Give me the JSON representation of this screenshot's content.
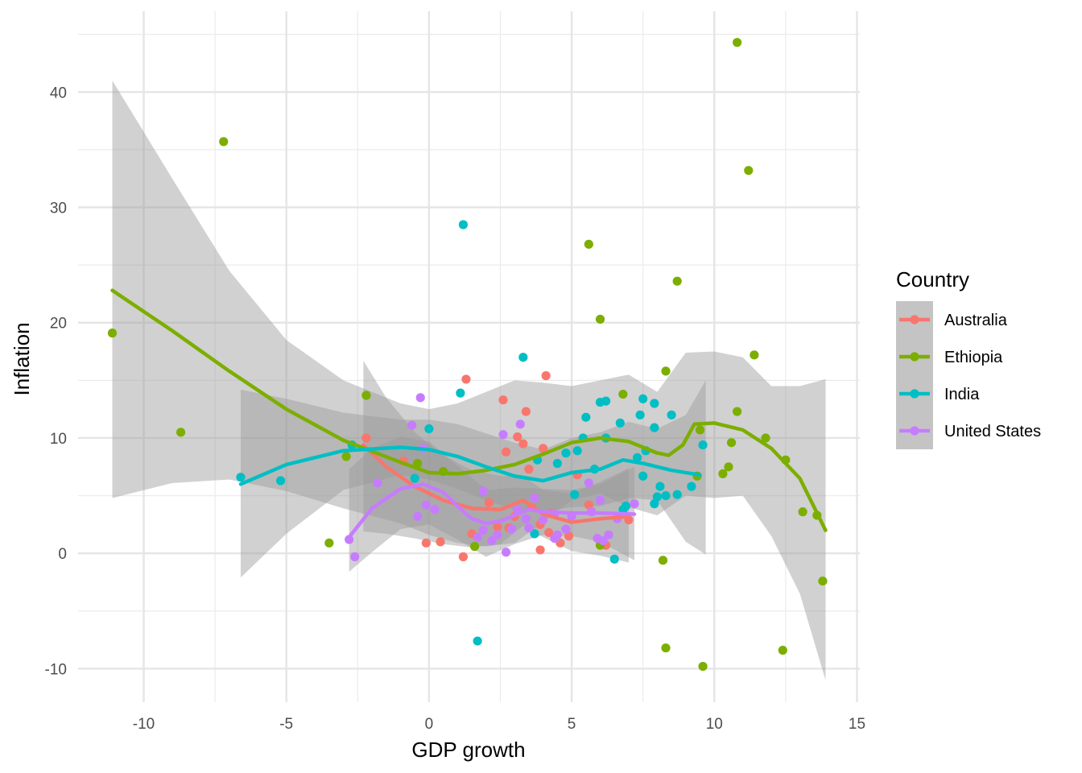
{
  "chart_data": {
    "type": "scatter",
    "xlabel": "GDP growth",
    "ylabel": "Inflation",
    "xlim": [
      -12.3,
      15.1
    ],
    "ylim": [
      -12.9,
      47
    ],
    "x_ticks": [
      -10,
      -5,
      0,
      5,
      10,
      15
    ],
    "x_tick_labels": [
      "-10",
      "-5",
      "0",
      "5",
      "10",
      "15"
    ],
    "y_ticks": [
      -10,
      0,
      10,
      20,
      30,
      40
    ],
    "y_tick_labels": [
      "-10",
      "0",
      "10",
      "20",
      "30",
      "40"
    ],
    "grid": true,
    "legend": {
      "title": "Country",
      "placement": "right"
    },
    "smoother": "loess with 95% confidence band",
    "series": [
      {
        "name": "Australia",
        "color": "#F8766D",
        "points": [
          [
            1.3,
            15.1
          ],
          [
            4.1,
            15.4
          ],
          [
            3.4,
            12.3
          ],
          [
            2.6,
            13.3
          ],
          [
            -2.2,
            10
          ],
          [
            -0.9,
            8
          ],
          [
            3.3,
            9.5
          ],
          [
            4.0,
            9.1
          ],
          [
            2.7,
            8.8
          ],
          [
            3.1,
            10.1
          ],
          [
            2.1,
            4.4
          ],
          [
            0.4,
            1
          ],
          [
            -0.1,
            0.9
          ],
          [
            3.9,
            0.3
          ],
          [
            4.6,
            0.9
          ],
          [
            4.9,
            1.5
          ],
          [
            6.2,
            0.7
          ],
          [
            1.2,
            -0.3
          ],
          [
            3.5,
            7.3
          ],
          [
            5.2,
            6.8
          ],
          [
            4.3,
            3.5
          ],
          [
            2.8,
            2.2
          ],
          [
            3.9,
            2.5
          ],
          [
            7,
            2.9
          ],
          [
            4.2,
            1.8
          ],
          [
            2.4,
            2.3
          ],
          [
            3.6,
            4
          ],
          [
            5.6,
            4.2
          ],
          [
            1.5,
            1.7
          ],
          [
            3.0,
            3.2
          ]
        ],
        "trend": [
          [
            -2.3,
            9.4
          ],
          [
            -1.5,
            7.5
          ],
          [
            -0.5,
            5.8
          ],
          [
            0.5,
            4.6
          ],
          [
            1.5,
            3.9
          ],
          [
            2.5,
            3.8
          ],
          [
            3.3,
            4.6
          ],
          [
            4.0,
            3.4
          ],
          [
            5,
            2.7
          ],
          [
            6,
            3
          ],
          [
            7,
            3.2
          ]
        ],
        "band_upper": [
          [
            -2.3,
            16.7
          ],
          [
            -1.5,
            13.5
          ],
          [
            -0.5,
            10.5
          ],
          [
            0.5,
            8.5
          ],
          [
            1.5,
            7.2
          ],
          [
            2.5,
            6.7
          ],
          [
            3.3,
            6.7
          ],
          [
            4.0,
            5.5
          ],
          [
            5,
            5.2
          ],
          [
            6,
            6.2
          ],
          [
            7,
            7.4
          ]
        ],
        "band_lower": [
          [
            -2.3,
            1.9
          ],
          [
            -1.5,
            1.7
          ],
          [
            -0.5,
            1.3
          ],
          [
            0.5,
            0.8
          ],
          [
            1.5,
            0.5
          ],
          [
            2.5,
            0.8
          ],
          [
            3.3,
            2.4
          ],
          [
            4.0,
            1.4
          ],
          [
            5,
            0.2
          ],
          [
            6,
            -0.2
          ],
          [
            7,
            -0.8
          ]
        ]
      },
      {
        "name": "Ethiopia",
        "color": "#7CAE00",
        "points": [
          [
            -11.1,
            19.1
          ],
          [
            -8.7,
            10.5
          ],
          [
            -7.2,
            35.7
          ],
          [
            -3.5,
            0.9
          ],
          [
            -2.2,
            13.7
          ],
          [
            -2.9,
            8.4
          ],
          [
            -0.4,
            7.8
          ],
          [
            0.5,
            7.1
          ],
          [
            1.6,
            0.6
          ],
          [
            5.6,
            26.8
          ],
          [
            6,
            20.3
          ],
          [
            6.8,
            13.8
          ],
          [
            8.3,
            15.8
          ],
          [
            8.7,
            23.6
          ],
          [
            8.3,
            -8.2
          ],
          [
            8.2,
            -0.6
          ],
          [
            9.6,
            -9.8
          ],
          [
            9.5,
            10.7
          ],
          [
            10.8,
            44.3
          ],
          [
            11.2,
            33.2
          ],
          [
            11.4,
            17.2
          ],
          [
            10.8,
            12.3
          ],
          [
            10.3,
            6.9
          ],
          [
            10.6,
            9.6
          ],
          [
            10.5,
            7.5
          ],
          [
            11.8,
            10
          ],
          [
            12.5,
            8.1
          ],
          [
            12.4,
            -8.4
          ],
          [
            13.1,
            3.6
          ],
          [
            13.6,
            3.3
          ],
          [
            13.8,
            -2.4
          ],
          [
            6,
            0.7
          ],
          [
            9.4,
            6.7
          ]
        ],
        "trend": [
          [
            -11.1,
            22.8
          ],
          [
            -9,
            19.3
          ],
          [
            -7,
            15.8
          ],
          [
            -5,
            12.5
          ],
          [
            -3,
            9.8
          ],
          [
            -1,
            7.9
          ],
          [
            0,
            7
          ],
          [
            1,
            6.9
          ],
          [
            2,
            7.2
          ],
          [
            3,
            7.7
          ],
          [
            4,
            8.6
          ],
          [
            5,
            9.6
          ],
          [
            6,
            10
          ],
          [
            7,
            9.7
          ],
          [
            8,
            8.7
          ],
          [
            8.4,
            8.5
          ],
          [
            8.9,
            9.4
          ],
          [
            9.3,
            11.2
          ],
          [
            10,
            11.3
          ],
          [
            11,
            10.7
          ],
          [
            12,
            9.1
          ],
          [
            13,
            6.5
          ],
          [
            13.9,
            2
          ]
        ],
        "band_upper": [
          [
            -11.1,
            41
          ],
          [
            -9,
            32.5
          ],
          [
            -7,
            24.5
          ],
          [
            -5,
            18.5
          ],
          [
            -3,
            15
          ],
          [
            -1,
            13
          ],
          [
            0,
            12.5
          ],
          [
            1,
            13
          ],
          [
            2,
            14
          ],
          [
            3,
            15
          ],
          [
            4,
            14.8
          ],
          [
            5,
            14.5
          ],
          [
            6,
            15
          ],
          [
            7,
            15.5
          ],
          [
            8,
            14
          ],
          [
            9,
            17.4
          ],
          [
            10,
            17.5
          ],
          [
            11,
            17
          ],
          [
            12,
            14.5
          ],
          [
            13,
            14.5
          ],
          [
            13.9,
            15.1
          ]
        ],
        "band_lower": [
          [
            -11.1,
            4.8
          ],
          [
            -9,
            6.1
          ],
          [
            -7,
            6.4
          ],
          [
            -5,
            5.4
          ],
          [
            -3,
            3.9
          ],
          [
            -1,
            2.6
          ],
          [
            0,
            1.6
          ],
          [
            1,
            0.9
          ],
          [
            2,
            0.6
          ],
          [
            3,
            0.9
          ],
          [
            4,
            2.7
          ],
          [
            5,
            4.6
          ],
          [
            6,
            5.2
          ],
          [
            7,
            4
          ],
          [
            8,
            3.3
          ],
          [
            9,
            5
          ],
          [
            10,
            4.8
          ],
          [
            11,
            5
          ],
          [
            12,
            1.5
          ],
          [
            13,
            -3.5
          ],
          [
            13.9,
            -11
          ]
        ]
      },
      {
        "name": "India",
        "color": "#00BFC4",
        "points": [
          [
            -6.6,
            6.6
          ],
          [
            -5.2,
            6.3
          ],
          [
            -2.7,
            9.4
          ],
          [
            -0.5,
            6.5
          ],
          [
            0,
            10.8
          ],
          [
            1.1,
            13.9
          ],
          [
            1.2,
            28.5
          ],
          [
            3.3,
            17
          ],
          [
            1.7,
            -7.6
          ],
          [
            3.7,
            1.7
          ],
          [
            6.5,
            -0.5
          ],
          [
            3.8,
            8.1
          ],
          [
            4.5,
            7.8
          ],
          [
            5.5,
            11.8
          ],
          [
            5.4,
            10
          ],
          [
            5.2,
            8.9
          ],
          [
            6.0,
            13.1
          ],
          [
            6.2,
            13.2
          ],
          [
            6.7,
            11.3
          ],
          [
            7.4,
            12
          ],
          [
            7.5,
            13.4
          ],
          [
            7.9,
            13
          ],
          [
            8.5,
            12
          ],
          [
            7.9,
            10.9
          ],
          [
            7.6,
            8.9
          ],
          [
            7.3,
            8.3
          ],
          [
            6.2,
            10
          ],
          [
            5.8,
            7.3
          ],
          [
            5.1,
            5.1
          ],
          [
            4.8,
            8.7
          ],
          [
            6.9,
            4.1
          ],
          [
            7.9,
            4.3
          ],
          [
            8.0,
            4.9
          ],
          [
            8.3,
            5
          ],
          [
            8.7,
            5.1
          ],
          [
            9.2,
            5.8
          ],
          [
            9.6,
            9.4
          ],
          [
            8.1,
            5.8
          ],
          [
            7.5,
            6.7
          ],
          [
            6.8,
            3.8
          ]
        ],
        "trend": [
          [
            -6.6,
            6
          ],
          [
            -5,
            7.7
          ],
          [
            -3,
            8.9
          ],
          [
            -1,
            9.2
          ],
          [
            0,
            9
          ],
          [
            1,
            8.4
          ],
          [
            2,
            7.5
          ],
          [
            3,
            6.7
          ],
          [
            4,
            6.3
          ],
          [
            5,
            7
          ],
          [
            6,
            7.3
          ],
          [
            6.8,
            8.1
          ],
          [
            7.5,
            7.8
          ],
          [
            8.5,
            7.2
          ],
          [
            9.5,
            6.8
          ]
        ],
        "band_upper": [
          [
            -6.6,
            14.2
          ],
          [
            -5,
            13.4
          ],
          [
            -3,
            12.2
          ],
          [
            -1,
            11.6
          ],
          [
            0,
            11.6
          ],
          [
            1,
            11.2
          ],
          [
            2,
            10.4
          ],
          [
            3,
            9.6
          ],
          [
            4,
            9
          ],
          [
            5,
            10
          ],
          [
            6,
            10.5
          ],
          [
            7,
            11.4
          ],
          [
            8,
            10.8
          ],
          [
            9,
            12
          ],
          [
            9.7,
            15
          ]
        ],
        "band_lower": [
          [
            -6.6,
            -2.1
          ],
          [
            -5,
            1.7
          ],
          [
            -3,
            5.5
          ],
          [
            -1,
            6.8
          ],
          [
            0,
            6.4
          ],
          [
            1,
            5.6
          ],
          [
            2,
            4.6
          ],
          [
            3,
            3.8
          ],
          [
            4,
            3.6
          ],
          [
            5,
            4
          ],
          [
            6,
            4.1
          ],
          [
            7,
            4.8
          ],
          [
            8,
            4.6
          ],
          [
            9,
            1
          ],
          [
            9.7,
            -0.1
          ]
        ]
      },
      {
        "name": "United States",
        "color": "#C77CFF",
        "points": [
          [
            -2.8,
            1.2
          ],
          [
            -2.6,
            -0.3
          ],
          [
            -1.8,
            6.1
          ],
          [
            -0.6,
            11.1
          ],
          [
            -0.3,
            13.5
          ],
          [
            -0.2,
            9.1
          ],
          [
            -0.1,
            4.2
          ],
          [
            0.2,
            3.8
          ],
          [
            -0.4,
            3.2
          ],
          [
            1.9,
            5.4
          ],
          [
            2.6,
            10.3
          ],
          [
            3.2,
            11.2
          ],
          [
            1.7,
            1.4
          ],
          [
            2.2,
            1.1
          ],
          [
            2.7,
            0.1
          ],
          [
            2.9,
            2.1
          ],
          [
            3.4,
            3
          ],
          [
            3.7,
            4.8
          ],
          [
            4.4,
            3.4
          ],
          [
            4.5,
            1.6
          ],
          [
            4.4,
            1.3
          ],
          [
            5,
            3.2
          ],
          [
            5.7,
            3.6
          ],
          [
            5.6,
            6.1
          ],
          [
            6.1,
            1.1
          ],
          [
            6.0,
            4.6
          ],
          [
            6.6,
            3
          ],
          [
            7.2,
            4.3
          ],
          [
            5.9,
            1.3
          ],
          [
            6.3,
            1.6
          ],
          [
            4.0,
            2.9
          ],
          [
            3.5,
            2.2
          ],
          [
            2.4,
            1.6
          ],
          [
            1.9,
            2
          ],
          [
            3.1,
            3.8
          ],
          [
            4.8,
            2.1
          ]
        ],
        "trend": [
          [
            -2.8,
            1.4
          ],
          [
            -2,
            3.9
          ],
          [
            -1,
            5.6
          ],
          [
            -0.2,
            6
          ],
          [
            0.5,
            5.3
          ],
          [
            1,
            4.1
          ],
          [
            1.5,
            3
          ],
          [
            2,
            2.6
          ],
          [
            2.5,
            2.8
          ],
          [
            3,
            3.3
          ],
          [
            3.5,
            3.8
          ],
          [
            4,
            3.6
          ],
          [
            5,
            3.5
          ],
          [
            6,
            3.5
          ],
          [
            7.2,
            3.4
          ]
        ],
        "band_upper": [
          [
            -2.8,
            7.3
          ],
          [
            -2,
            9.1
          ],
          [
            -1,
            10.1
          ],
          [
            0,
            9.7
          ],
          [
            1,
            7.6
          ],
          [
            2,
            5.5
          ],
          [
            3,
            5.7
          ],
          [
            4,
            5.6
          ],
          [
            5,
            5.5
          ],
          [
            6,
            6
          ],
          [
            7.2,
            7.5
          ]
        ],
        "band_lower": [
          [
            -2.8,
            -1.6
          ],
          [
            -2,
            0.1
          ],
          [
            -1,
            2.1
          ],
          [
            0,
            2.5
          ],
          [
            1,
            1.2
          ],
          [
            2,
            -0.3
          ],
          [
            3,
            0.8
          ],
          [
            4,
            1.6
          ],
          [
            5,
            1.5
          ],
          [
            6,
            1
          ],
          [
            7.2,
            -0.6
          ]
        ]
      }
    ]
  }
}
